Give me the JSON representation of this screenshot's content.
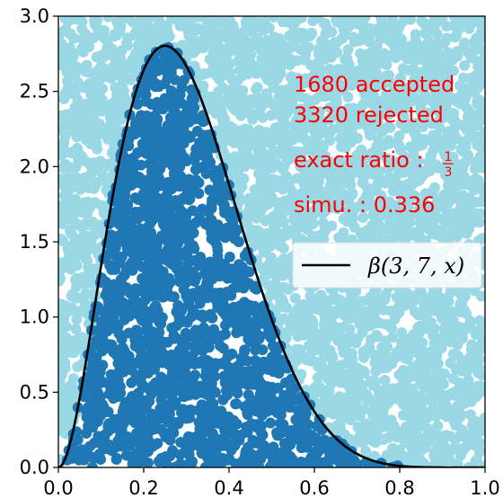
{
  "chart_data": {
    "type": "scatter",
    "xlim": [
      0.0,
      1.0
    ],
    "ylim": [
      0.0,
      3.0
    ],
    "x_ticks": [
      "0.0",
      "0.2",
      "0.4",
      "0.6",
      "0.8",
      "1.0"
    ],
    "y_ticks": [
      "0.0",
      "0.5",
      "1.0",
      "1.5",
      "2.0",
      "2.5",
      "3.0"
    ],
    "grid": false,
    "legend_position": "right",
    "series": [
      {
        "kind": "scatter",
        "role": "accepted",
        "count": 1680,
        "color": "#1f77b4"
      },
      {
        "kind": "scatter",
        "role": "rejected",
        "count": 3320,
        "color": "#9ad8e6"
      },
      {
        "kind": "line",
        "name": "β(3, 7, x)",
        "color": "#000000",
        "alpha": 3,
        "beta": 7
      }
    ],
    "annotations": {
      "accepted": "1680 accepted",
      "rejected": "3320 rejected",
      "exact_ratio_prefix": "exact ratio : ",
      "exact_ratio_num": "1",
      "exact_ratio_den": "3",
      "simu": "simu. : 0.336",
      "color": "#ff0000"
    },
    "legend": {
      "label": "β(3, 7, x)"
    }
  }
}
